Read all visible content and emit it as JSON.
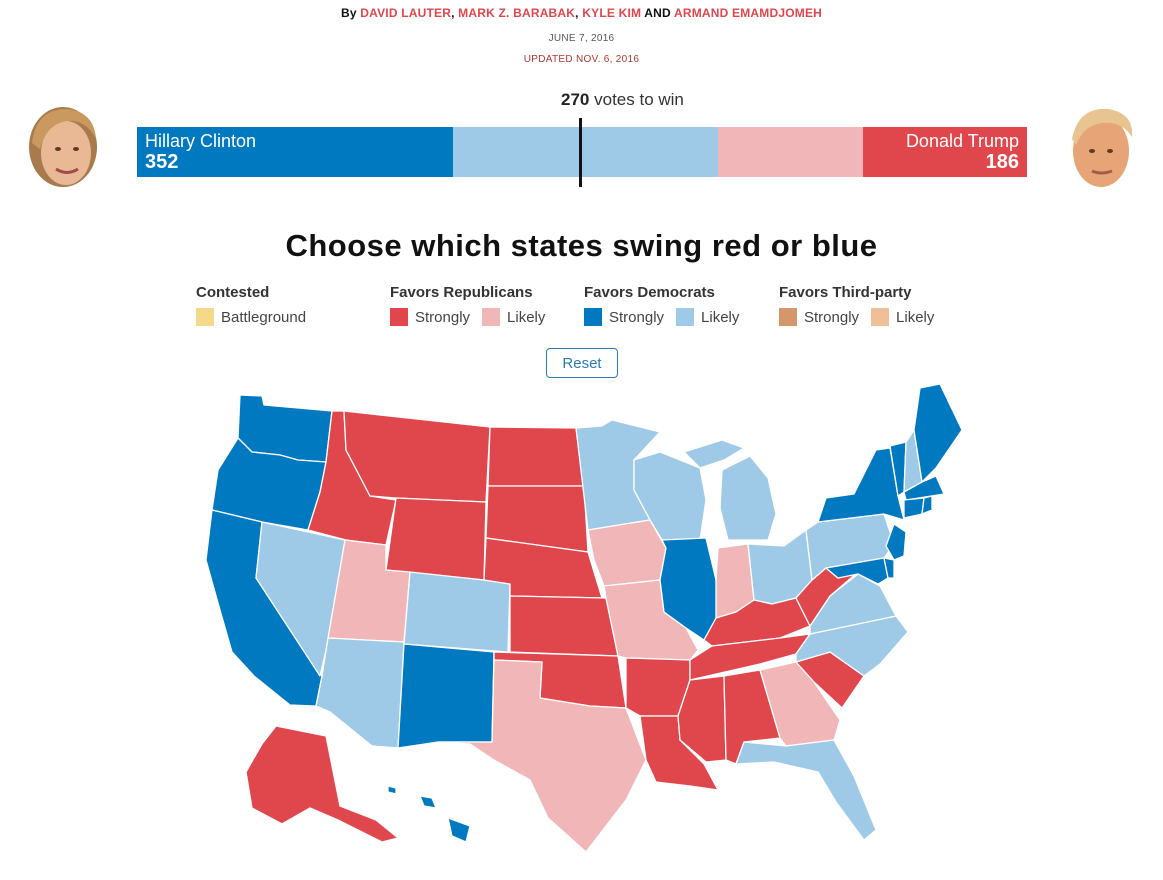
{
  "byline": {
    "prefix": "By",
    "authors": [
      "DAVID LAUTER",
      "MARK Z. BARABAK",
      "KYLE KIM",
      "ARMAND EMAMDJOMEH"
    ],
    "sep1": ", ",
    "sep2": ", ",
    "sep3": " AND "
  },
  "date": "JUNE 7, 2016",
  "updated": "UPDATED NOV. 6, 2016",
  "win": {
    "number": "270",
    "text": "votes to win"
  },
  "candidates": {
    "left": {
      "name": "Hillary Clinton",
      "votes": "352"
    },
    "right": {
      "name": "Donald Trump",
      "votes": "186"
    }
  },
  "title": "Choose which states swing red or blue",
  "legend": [
    {
      "heading": "Contested",
      "items": [
        {
          "label": "Battleground",
          "color": "#f5d98b"
        }
      ]
    },
    {
      "heading": "Favors Republicans",
      "items": [
        {
          "label": "Strongly",
          "color": "#e0474c"
        },
        {
          "label": "Likely",
          "color": "#f1b6b8"
        }
      ]
    },
    {
      "heading": "Favors Democrats",
      "items": [
        {
          "label": "Strongly",
          "color": "#0079c1"
        },
        {
          "label": "Likely",
          "color": "#9ecae8"
        }
      ]
    },
    {
      "heading": "Favors Third-party",
      "items": [
        {
          "label": "Strongly",
          "color": "#d4966a"
        },
        {
          "label": "Likely",
          "color": "#f0bf98"
        }
      ]
    }
  ],
  "reset_label": "Reset",
  "colors": {
    "strong_dem": "#0079c1",
    "likely_dem": "#9ecae8",
    "likely_rep": "#f1b6b8",
    "strong_rep": "#e0474c",
    "author_link": "#e0474c",
    "reset": "#2b7bb9"
  },
  "states": [
    {
      "id": "WA",
      "rating": "strong_dem"
    },
    {
      "id": "OR",
      "rating": "strong_dem"
    },
    {
      "id": "CA",
      "rating": "strong_dem"
    },
    {
      "id": "NV",
      "rating": "likely_dem"
    },
    {
      "id": "ID",
      "rating": "strong_rep"
    },
    {
      "id": "MT",
      "rating": "strong_rep"
    },
    {
      "id": "WY",
      "rating": "strong_rep"
    },
    {
      "id": "UT",
      "rating": "likely_rep"
    },
    {
      "id": "AZ",
      "rating": "likely_dem"
    },
    {
      "id": "CO",
      "rating": "likely_dem"
    },
    {
      "id": "NM",
      "rating": "strong_dem"
    },
    {
      "id": "ND",
      "rating": "strong_rep"
    },
    {
      "id": "SD",
      "rating": "strong_rep"
    },
    {
      "id": "NE",
      "rating": "strong_rep"
    },
    {
      "id": "KS",
      "rating": "strong_rep"
    },
    {
      "id": "OK",
      "rating": "strong_rep"
    },
    {
      "id": "TX",
      "rating": "likely_rep"
    },
    {
      "id": "MN",
      "rating": "likely_dem"
    },
    {
      "id": "IA",
      "rating": "likely_rep"
    },
    {
      "id": "MO",
      "rating": "likely_rep"
    },
    {
      "id": "AR",
      "rating": "strong_rep"
    },
    {
      "id": "LA",
      "rating": "strong_rep"
    },
    {
      "id": "WI",
      "rating": "likely_dem"
    },
    {
      "id": "IL",
      "rating": "strong_dem"
    },
    {
      "id": "MI",
      "rating": "likely_dem"
    },
    {
      "id": "IN",
      "rating": "likely_rep"
    },
    {
      "id": "OH",
      "rating": "likely_dem"
    },
    {
      "id": "KY",
      "rating": "strong_rep"
    },
    {
      "id": "TN",
      "rating": "strong_rep"
    },
    {
      "id": "MS",
      "rating": "strong_rep"
    },
    {
      "id": "AL",
      "rating": "strong_rep"
    },
    {
      "id": "GA",
      "rating": "likely_rep"
    },
    {
      "id": "FL",
      "rating": "likely_dem"
    },
    {
      "id": "SC",
      "rating": "strong_rep"
    },
    {
      "id": "NC",
      "rating": "likely_dem"
    },
    {
      "id": "VA",
      "rating": "likely_dem"
    },
    {
      "id": "WV",
      "rating": "strong_rep"
    },
    {
      "id": "PA",
      "rating": "likely_dem"
    },
    {
      "id": "NY",
      "rating": "strong_dem"
    },
    {
      "id": "NJ",
      "rating": "strong_dem"
    },
    {
      "id": "MD",
      "rating": "strong_dem"
    },
    {
      "id": "DE",
      "rating": "strong_dem"
    },
    {
      "id": "VT",
      "rating": "strong_dem"
    },
    {
      "id": "NH",
      "rating": "likely_dem"
    },
    {
      "id": "ME",
      "rating": "strong_dem"
    },
    {
      "id": "MA",
      "rating": "strong_dem"
    },
    {
      "id": "CT",
      "rating": "strong_dem"
    },
    {
      "id": "RI",
      "rating": "strong_dem"
    },
    {
      "id": "AK",
      "rating": "strong_rep"
    },
    {
      "id": "HI",
      "rating": "strong_dem"
    }
  ]
}
